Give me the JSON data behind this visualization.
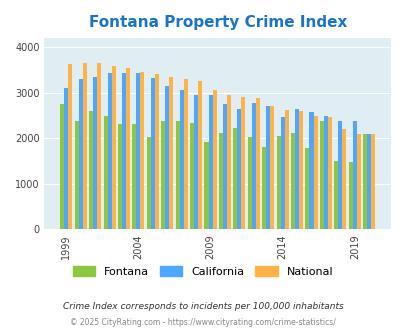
{
  "title": "Fontana Property Crime Index",
  "title_color": "#1874CD",
  "years": [
    1999,
    2000,
    2001,
    2002,
    2003,
    2004,
    2005,
    2006,
    2007,
    2008,
    2009,
    2010,
    2011,
    2012,
    2013,
    2014,
    2015,
    2016,
    2017,
    2018,
    2019,
    2020
  ],
  "fontana": [
    2750,
    2390,
    2590,
    2500,
    2320,
    2320,
    2030,
    2390,
    2390,
    2330,
    1930,
    2110,
    2230,
    2020,
    1800,
    2050,
    2110,
    1780,
    2390,
    1500,
    1480,
    2090
  ],
  "california": [
    3100,
    3300,
    3350,
    3430,
    3440,
    3440,
    3320,
    3150,
    3050,
    2950,
    2950,
    2750,
    2640,
    2780,
    2700,
    2470,
    2640,
    2570,
    2500,
    2390,
    2380,
    2090
  ],
  "national": [
    3640,
    3660,
    3650,
    3590,
    3550,
    3460,
    3410,
    3350,
    3300,
    3250,
    3060,
    2950,
    2900,
    2880,
    2720,
    2620,
    2590,
    2490,
    2460,
    2200,
    2100,
    2090
  ],
  "fontana_color": "#8DC63F",
  "california_color": "#4DA6FF",
  "national_color": "#FFB347",
  "bg_color": "#E0EEF4",
  "subtitle": "Crime Index corresponds to incidents per 100,000 inhabitants",
  "footer": "© 2025 CityRating.com - https://www.cityrating.com/crime-statistics/",
  "ylabel_ticks": [
    0,
    1000,
    2000,
    3000,
    4000
  ],
  "xtick_years": [
    1999,
    2004,
    2009,
    2014,
    2019
  ],
  "ylim": [
    0,
    4200
  ]
}
